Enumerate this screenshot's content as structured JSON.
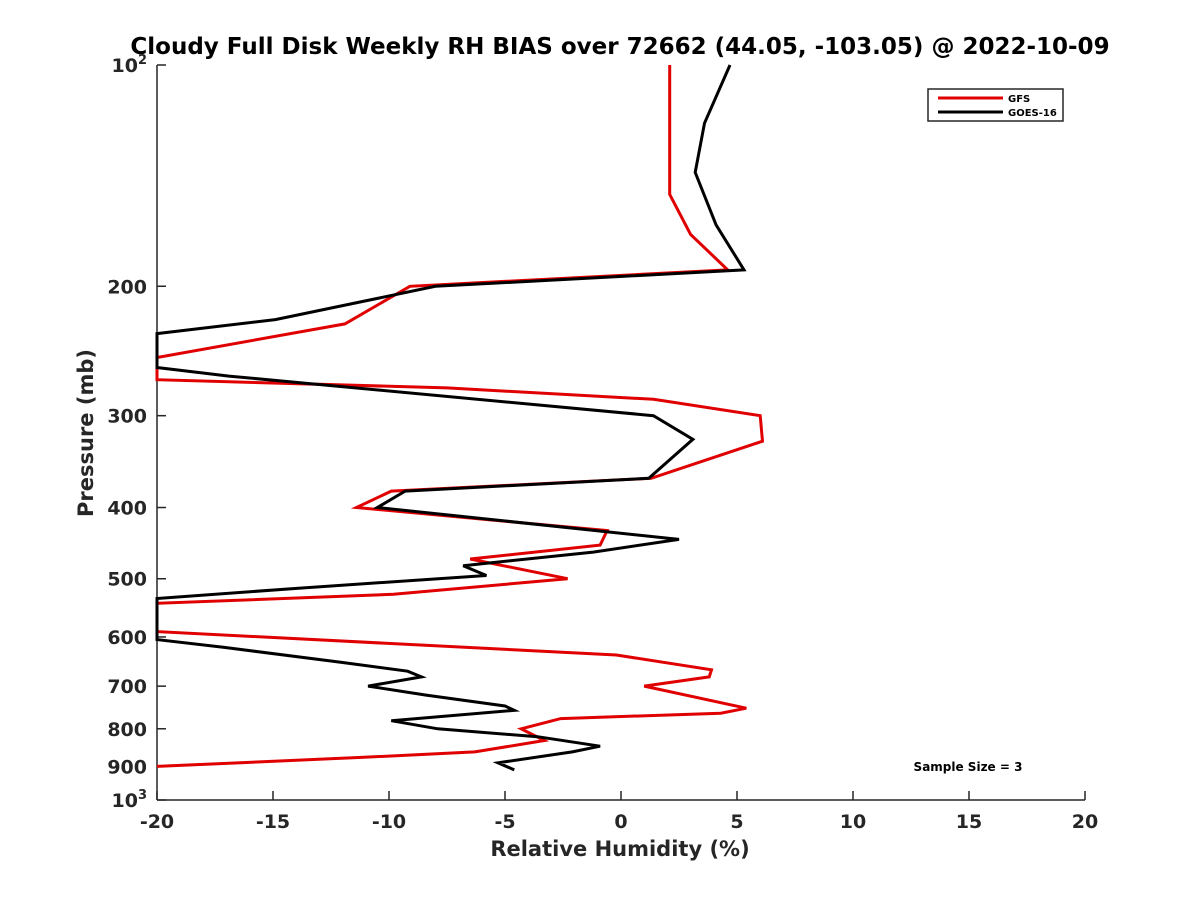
{
  "chart_data": {
    "type": "line",
    "title": "Cloudy Full Disk Weekly RH BIAS over 72662 (44.05, -103.05) @ 2022-10-09",
    "xlabel": "Relative Humidity (%)",
    "ylabel": "Pressure (mb)",
    "xlim": [
      -20,
      20
    ],
    "ylim": [
      100,
      1000
    ],
    "y_scale": "log",
    "y_reversed": true,
    "x_ticks": [
      "-20",
      "-15",
      "-10",
      "-5",
      "0",
      "5",
      "10",
      "15",
      "20"
    ],
    "y_ticks": [
      {
        "value": 100,
        "label": "10",
        "sup": "2"
      },
      {
        "value": 200,
        "label": "200",
        "sup": ""
      },
      {
        "value": 300,
        "label": "300",
        "sup": ""
      },
      {
        "value": 400,
        "label": "400",
        "sup": ""
      },
      {
        "value": 500,
        "label": "500",
        "sup": ""
      },
      {
        "value": 600,
        "label": "600",
        "sup": ""
      },
      {
        "value": 700,
        "label": "700",
        "sup": ""
      },
      {
        "value": 800,
        "label": "800",
        "sup": ""
      },
      {
        "value": 900,
        "label": "900",
        "sup": ""
      },
      {
        "value": 1000,
        "label": "10",
        "sup": "3"
      }
    ],
    "grid": false,
    "legend_position": "top-right",
    "annotation": "Sample Size = 3",
    "series": [
      {
        "name": "GFS",
        "color": "#e00000",
        "points": [
          [
            2.1,
            100
          ],
          [
            2.1,
            125
          ],
          [
            2.1,
            150
          ],
          [
            3.0,
            170
          ],
          [
            4.6,
            190
          ],
          [
            -9.1,
            200
          ],
          [
            -11.9,
            225
          ],
          [
            -20.0,
            250
          ],
          [
            -20.0,
            268
          ],
          [
            -7.5,
            275
          ],
          [
            1.4,
            285
          ],
          [
            6.0,
            300
          ],
          [
            6.1,
            325
          ],
          [
            1.3,
            365
          ],
          [
            -9.9,
            380
          ],
          [
            -11.4,
            400
          ],
          [
            -0.6,
            430
          ],
          [
            -0.9,
            450
          ],
          [
            -6.5,
            470
          ],
          [
            -2.3,
            500
          ],
          [
            -9.8,
            525
          ],
          [
            -20.0,
            540
          ],
          [
            -20.0,
            590
          ],
          [
            -0.2,
            635
          ],
          [
            3.9,
            665
          ],
          [
            3.8,
            680
          ],
          [
            1.0,
            700
          ],
          [
            5.4,
            750
          ],
          [
            4.3,
            762
          ],
          [
            -2.6,
            775
          ],
          [
            -4.3,
            800
          ],
          [
            -3.3,
            830
          ],
          [
            -6.3,
            860
          ],
          [
            -11.2,
            875
          ],
          [
            -20.0,
            900
          ]
        ]
      },
      {
        "name": "GOES-16",
        "color": "#000000",
        "points": [
          [
            4.7,
            100
          ],
          [
            3.6,
            120
          ],
          [
            3.2,
            140
          ],
          [
            4.1,
            165
          ],
          [
            5.3,
            190
          ],
          [
            -8.0,
            200
          ],
          [
            -14.9,
            222
          ],
          [
            -20.0,
            232
          ],
          [
            -20.0,
            258
          ],
          [
            -16.9,
            265
          ],
          [
            1.4,
            300
          ],
          [
            3.1,
            323
          ],
          [
            2.3,
            340
          ],
          [
            1.2,
            365
          ],
          [
            -9.3,
            380
          ],
          [
            -10.5,
            400
          ],
          [
            2.5,
            442
          ],
          [
            -1.2,
            460
          ],
          [
            -6.8,
            480
          ],
          [
            -5.8,
            495
          ],
          [
            -13.9,
            515
          ],
          [
            -20.0,
            532
          ],
          [
            -20.0,
            605
          ],
          [
            -17.1,
            620
          ],
          [
            -12.0,
            650
          ],
          [
            -9.2,
            668
          ],
          [
            -8.6,
            680
          ],
          [
            -10.9,
            700
          ],
          [
            -8.4,
            720
          ],
          [
            -5.0,
            745
          ],
          [
            -4.6,
            755
          ],
          [
            -9.9,
            780
          ],
          [
            -7.9,
            800
          ],
          [
            -3.6,
            820
          ],
          [
            -0.9,
            845
          ],
          [
            -2.1,
            860
          ],
          [
            -5.3,
            890
          ],
          [
            -4.6,
            910
          ]
        ]
      }
    ]
  }
}
